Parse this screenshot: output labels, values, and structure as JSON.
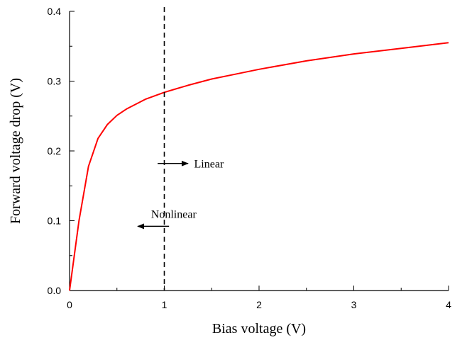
{
  "chart_data": {
    "type": "line",
    "title": "",
    "xlabel": "Bias voltage (V)",
    "ylabel": "Forward voltage drop (V)",
    "xlim": [
      0,
      4
    ],
    "ylim": [
      0,
      0.4
    ],
    "x_ticks": [
      0,
      1,
      2,
      3,
      4
    ],
    "x_tick_labels": [
      "0",
      "1",
      "2",
      "3",
      "4"
    ],
    "y_ticks": [
      0,
      0.1,
      0.2,
      0.3,
      0.4
    ],
    "y_tick_labels": [
      "0.0",
      "0.1",
      "0.2",
      "0.3",
      "0.4"
    ],
    "grid": false,
    "series": [
      {
        "color": "#ff0000",
        "x": [
          0,
          0.1,
          0.2,
          0.3,
          0.4,
          0.5,
          0.6,
          0.8,
          1.0,
          1.25,
          1.5,
          1.75,
          2.0,
          2.5,
          3.0,
          3.5,
          4.0
        ],
        "y": [
          0,
          0.1,
          0.178,
          0.218,
          0.238,
          0.251,
          0.26,
          0.274,
          0.284,
          0.294,
          0.303,
          0.31,
          0.317,
          0.329,
          0.339,
          0.347,
          0.355
        ]
      }
    ],
    "vline": {
      "x": 1,
      "style": "dashed",
      "color": "#000000"
    },
    "annotations": [
      {
        "text": "Linear",
        "x": 1.27,
        "y": 0.182,
        "arrow": "right",
        "arrow_from": 0.93,
        "arrow_to": 1.25
      },
      {
        "text": "Nonlinear",
        "x": 0.8,
        "y": 0.092,
        "arrow": "left",
        "arrow_from": 1.05,
        "arrow_to": 0.72
      }
    ]
  }
}
